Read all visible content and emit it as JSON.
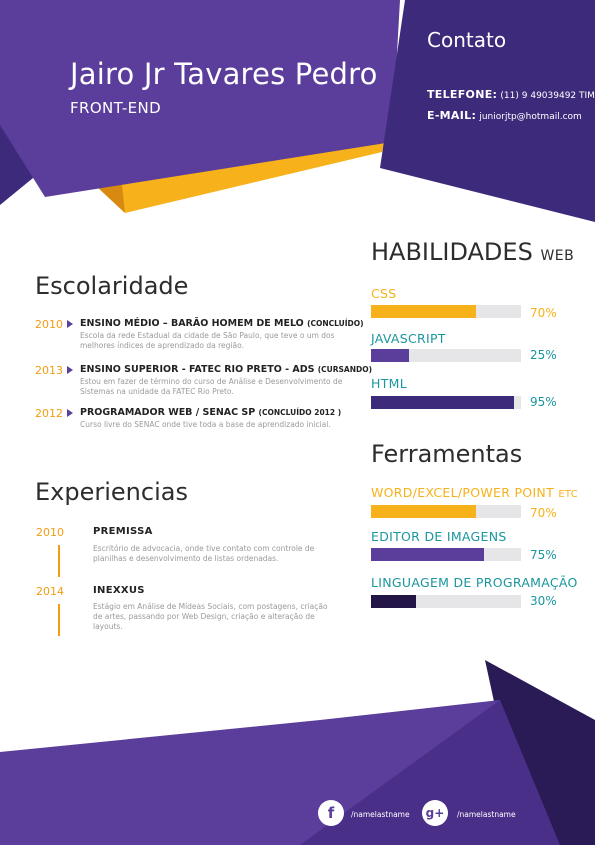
{
  "colors": {
    "purple": "#5b3d9b",
    "dark_purple": "#3e2a7a",
    "orange": "#f7b21b",
    "teal": "#19969e",
    "text_gray": "#9a9a9a"
  },
  "header": {
    "name": "Jairo Jr Tavares Pedro",
    "role": "FRONT-END"
  },
  "contact": {
    "title": "Contato",
    "phone_label": "TELEFONE:",
    "phone_value": "(11) 9 49039492 TIM",
    "email_label": "E-MAIL:",
    "email_value": "juniorjtp@hotmail.com"
  },
  "education": {
    "title": "Escolaridade",
    "items": [
      {
        "year": "2010",
        "title": "ENSINO MÉDIO – BARÃO HOMEM DE MELO",
        "status": "(CONCLUÍDO)",
        "desc": "Escola da rede Estadual da cidade de São Paulo, que teve o um dos melhores índices de aprendizado da região."
      },
      {
        "year": "2013",
        "title": "ENSINO SUPERIOR - FATEC RIO PRETO - ADS",
        "status": "(CURSANDO)",
        "desc": "Estou em fazer de término do curso de Análise e Desenvolvimento de Sistemas na unidade da FATEC Rio Preto."
      },
      {
        "year": "2012",
        "title": "PROGRAMADOR WEB / SENAC SP",
        "status": "(CONCLUÍDO 2012 )",
        "desc": "Curso livre do SENAC onde tive toda a base de aprendizado inicial."
      }
    ]
  },
  "experience": {
    "title": "Experiencias",
    "items": [
      {
        "year": "2010",
        "title": "PREMISSA",
        "desc": "Escritório de advocacia, onde tive contato com controle de planilhas e desenvolvimento de listas ordenadas."
      },
      {
        "year": "2014",
        "title": "INEXXUS",
        "desc": "Estágio em Análise de Mídeas Sociais, com postagens, criação de artes, passando por Web Design, criação e alteração de layouts."
      }
    ]
  },
  "skills": {
    "title": "HABILIDADES",
    "title_suffix": "WEB",
    "items": [
      {
        "label": "CSS",
        "suffix": "",
        "percent": 70,
        "percent_label": "70%",
        "label_color": "#f7b21b",
        "bar_color": "#f7b21b",
        "pct_color": "#f7b21b"
      },
      {
        "label": "JAVASCRIPT",
        "suffix": "",
        "percent": 25,
        "percent_label": "25%",
        "label_color": "#19969e",
        "bar_color": "#5b3d9b",
        "pct_color": "#19969e"
      },
      {
        "label": "HTML",
        "suffix": "",
        "percent": 95,
        "percent_label": "95%",
        "label_color": "#19969e",
        "bar_color": "#3e2a7a",
        "pct_color": "#19969e"
      }
    ]
  },
  "tools": {
    "title": "Ferramentas",
    "items": [
      {
        "label": "WORD/EXCEL/POWER POINT",
        "suffix": "ETC",
        "percent": 70,
        "percent_label": "70%",
        "label_color": "#f7b21b",
        "bar_color": "#f7b21b",
        "pct_color": "#f7b21b"
      },
      {
        "label": "EDITOR DE IMAGENS",
        "suffix": "",
        "percent": 75,
        "percent_label": "75%",
        "label_color": "#19969e",
        "bar_color": "#5b3d9b",
        "pct_color": "#19969e"
      },
      {
        "label": "LINGUAGEM DE PROGRAMAÇÃO",
        "suffix": "",
        "percent": 30,
        "percent_label": "30%",
        "label_color": "#19969e",
        "bar_color": "#231646",
        "pct_color": "#19969e"
      }
    ]
  },
  "social": {
    "facebook_icon": "facebook-icon",
    "facebook_glyph": "f",
    "facebook_handle": "/namelastname",
    "gplus_icon": "google-plus-icon",
    "gplus_glyph": "g+",
    "gplus_handle": "/namelastname"
  }
}
